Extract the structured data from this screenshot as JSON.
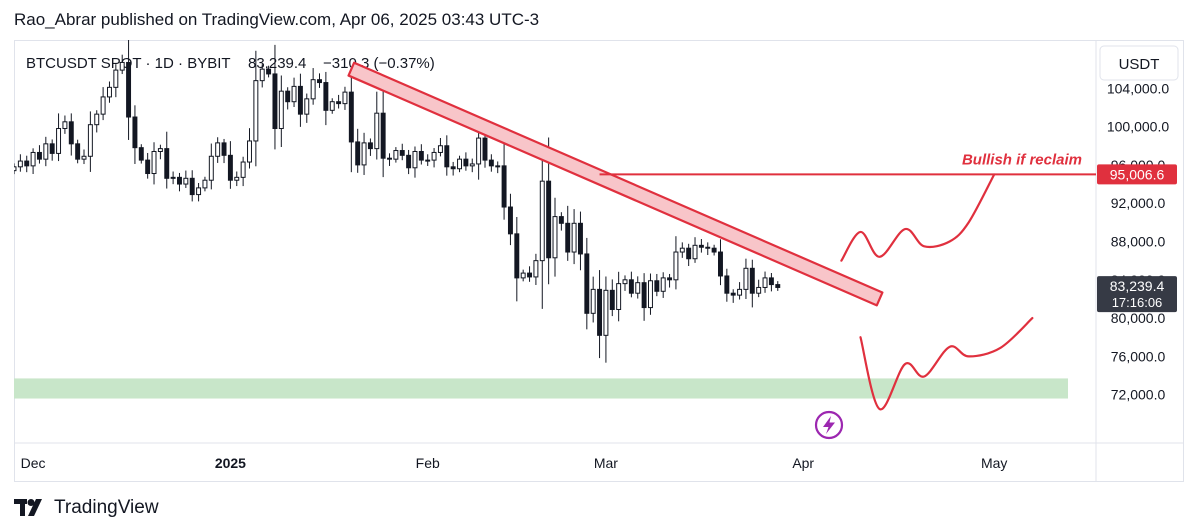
{
  "attribution": "Rao_Abrar published on TradingView.com, Apr 06, 2025 03:43 UTC-3",
  "footer_brand": "TradingView",
  "colors": {
    "up": "#131722",
    "down": "#131722",
    "trendline_fill": "#f8c5c9",
    "trendline_stroke": "#e0303e",
    "level_line": "#e0303e",
    "support_zone": "#c8e6c9",
    "price_tag": "#363a45",
    "level_tag": "#e0303e",
    "projection": "#e0303e",
    "flash_icon": "#9c27b0"
  },
  "chart_data": {
    "type": "candlestick",
    "symbol": "BTCUSDT SPOT",
    "interval": "1D",
    "exchange": "BYBIT",
    "last_price": "83,239.4",
    "change": "−310.3",
    "change_pct": "(−0.37%)",
    "currency": "USDT",
    "countdown": "17:16:06",
    "ylim": [
      68000,
      108000
    ],
    "y_ticks": [
      {
        "value": 104000,
        "label": "104,000.0"
      },
      {
        "value": 100000,
        "label": "100,000.0"
      },
      {
        "value": 96000,
        "label": "96,000.0"
      },
      {
        "value": 92000,
        "label": "92,000.0"
      },
      {
        "value": 88000,
        "label": "88,000.0"
      },
      {
        "value": 84000,
        "label": "84,000.0"
      },
      {
        "value": 80000,
        "label": "80,000.0"
      },
      {
        "value": 76000,
        "label": "76,000.0"
      },
      {
        "value": 72000,
        "label": "72,000.0"
      }
    ],
    "x_ticks": [
      {
        "date": "2024-12-01",
        "label": "Dec",
        "bold": false
      },
      {
        "date": "2025-01-01",
        "label": "2025",
        "bold": true
      },
      {
        "date": "2025-02-01",
        "label": "Feb",
        "bold": false
      },
      {
        "date": "2025-03-01",
        "label": "Mar",
        "bold": false
      },
      {
        "date": "2025-04-01",
        "label": "Apr",
        "bold": false
      },
      {
        "date": "2025-05-01",
        "label": "May",
        "bold": false
      }
    ],
    "xlim": [
      "2024-11-28",
      "2025-05-17"
    ],
    "start_date": "2024-11-28",
    "closes": [
      95800,
      96400,
      95900,
      97300,
      96600,
      98200,
      97200,
      99800,
      100500,
      98200,
      96600,
      96900,
      100200,
      101300,
      103100,
      104100,
      105900,
      106700,
      101000,
      97800,
      96500,
      95100,
      97400,
      97700,
      94600,
      94700,
      94000,
      94600,
      92900,
      93600,
      94400,
      96900,
      98300,
      97000,
      94400,
      94700,
      96300,
      98500,
      104800,
      106000,
      105500,
      99800,
      103700,
      102600,
      104200,
      101300,
      102900,
      104900,
      104600,
      101700,
      102600,
      102400,
      103600,
      98400,
      96000,
      98300,
      97700,
      101400,
      96700,
      96600,
      97500,
      97000,
      95700,
      97400,
      96500,
      96500,
      97300,
      98000,
      95800,
      95600,
      96600,
      95900,
      96100,
      98800,
      96500,
      95900,
      95900,
      91600,
      88800,
      84200,
      84700,
      84300,
      86000,
      94300,
      86300,
      90600,
      89900,
      86900,
      89900,
      86700,
      80500,
      83000,
      78200,
      82900,
      80900,
      83600,
      84000,
      82600,
      83700,
      81100,
      83900,
      82800,
      84200,
      84000,
      86900,
      87300,
      86200,
      87600,
      87400,
      87300,
      86900,
      84400,
      82600,
      82400,
      83000,
      85200,
      82600,
      83200,
      84200,
      83500,
      83200
    ],
    "trendline": {
      "start": {
        "date": "2025-01-20",
        "price": 106000
      },
      "end": {
        "date": "2025-04-13",
        "price": 82000
      }
    },
    "resistance_level": {
      "price": 95006.6,
      "label": "95,006.6",
      "start_date": "2025-02-28",
      "annotation": "Bullish if reclaim"
    },
    "support_zone": {
      "low": 71600,
      "high": 73700
    },
    "projections": {
      "bullish": [
        [
          "2025-04-07",
          86000
        ],
        [
          "2025-04-10",
          89000
        ],
        [
          "2025-04-13",
          86400
        ],
        [
          "2025-04-17",
          89300
        ],
        [
          "2025-04-20",
          87500
        ],
        [
          "2025-04-24",
          88000
        ],
        [
          "2025-04-27",
          90000
        ],
        [
          "2025-05-01",
          95000
        ]
      ],
      "bearish": [
        [
          "2025-04-10",
          78000
        ],
        [
          "2025-04-13",
          70500
        ],
        [
          "2025-04-17",
          75200
        ],
        [
          "2025-04-20",
          73900
        ],
        [
          "2025-04-24",
          77000
        ],
        [
          "2025-04-27",
          76000
        ],
        [
          "2025-05-02",
          76900
        ],
        [
          "2025-05-07",
          80000
        ]
      ]
    }
  }
}
